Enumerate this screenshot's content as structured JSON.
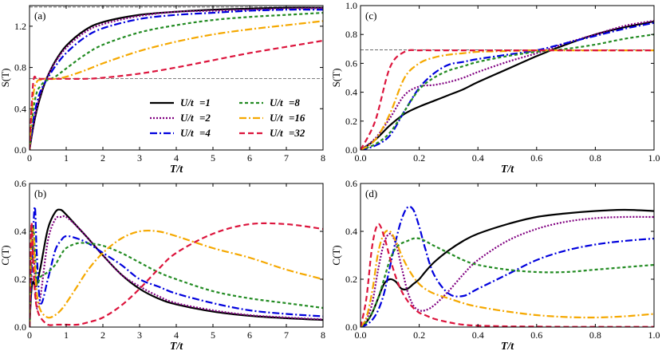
{
  "series_styles": [
    {
      "name": "U/t=1",
      "label_left": "U/t",
      "label_right": "=1",
      "color": "#000000",
      "dash": ""
    },
    {
      "name": "U/t=2",
      "label_left": "U/t",
      "label_right": "=2",
      "color": "#800080",
      "dash": "2 2"
    },
    {
      "name": "U/t=4",
      "label_left": "U/t",
      "label_right": "=4",
      "color": "#0000dd",
      "dash": "9 3 2 3"
    },
    {
      "name": "U/t=8",
      "label_left": "U/t",
      "label_right": "=8",
      "color": "#228b22",
      "dash": "4 3"
    },
    {
      "name": "U/t=16",
      "label_left": "U/t",
      "label_right": "=16",
      "color": "#f5a800",
      "dash": "9 3 2 3"
    },
    {
      "name": "U/t=32",
      "label_left": "U/t",
      "label_right": "=32",
      "color": "#dc143c",
      "dash": "7 4"
    }
  ],
  "chart_data": [
    {
      "panel": "(a)",
      "type": "line",
      "xlabel": "T/t",
      "ylabel": "S(T)",
      "xlim": [
        0,
        8
      ],
      "ylim": [
        0,
        1.4
      ],
      "xticks": [
        0,
        1,
        2,
        3,
        4,
        5,
        6,
        7,
        8
      ],
      "yticks": [
        0,
        0.4,
        0.8,
        1.2
      ],
      "xtick_labels": [
        "0",
        "1",
        "2",
        "3",
        "4",
        "5",
        "6",
        "7",
        "8"
      ],
      "ytick_labels": [
        "0.0",
        "0.4",
        "0.8",
        "1.2"
      ],
      "hlines": [
        1.386,
        0.693
      ],
      "x": [
        0,
        0.1,
        0.2,
        0.3,
        0.4,
        0.5,
        0.7,
        1,
        1.5,
        2,
        3,
        4,
        5,
        6,
        7,
        8
      ],
      "series": [
        {
          "name": "U/t=1",
          "values": [
            0,
            0.22,
            0.39,
            0.52,
            0.63,
            0.72,
            0.86,
            1.01,
            1.16,
            1.24,
            1.31,
            1.34,
            1.36,
            1.37,
            1.38,
            1.38
          ]
        },
        {
          "name": "U/t=2",
          "values": [
            0,
            0.24,
            0.41,
            0.54,
            0.64,
            0.72,
            0.85,
            0.99,
            1.14,
            1.22,
            1.3,
            1.34,
            1.35,
            1.36,
            1.37,
            1.375
          ]
        },
        {
          "name": "U/t=4",
          "values": [
            0,
            0.28,
            0.46,
            0.57,
            0.64,
            0.7,
            0.81,
            0.94,
            1.09,
            1.18,
            1.27,
            1.31,
            1.33,
            1.35,
            1.36,
            1.36
          ]
        },
        {
          "name": "U/t=8",
          "values": [
            0,
            0.38,
            0.56,
            0.62,
            0.66,
            0.68,
            0.71,
            0.79,
            0.92,
            1.02,
            1.14,
            1.21,
            1.26,
            1.29,
            1.31,
            1.33
          ]
        },
        {
          "name": "U/t=16",
          "values": [
            0,
            0.52,
            0.66,
            0.68,
            0.69,
            0.69,
            0.69,
            0.71,
            0.77,
            0.84,
            0.96,
            1.05,
            1.12,
            1.17,
            1.21,
            1.25
          ]
        },
        {
          "name": "U/t=32",
          "values": [
            0,
            0.65,
            0.69,
            0.69,
            0.69,
            0.69,
            0.69,
            0.69,
            0.69,
            0.7,
            0.74,
            0.8,
            0.87,
            0.94,
            1.0,
            1.06
          ]
        }
      ],
      "legend": "center-right"
    },
    {
      "panel": "(b)",
      "type": "line",
      "xlabel": "T/t",
      "ylabel": "C(T)",
      "xlim": [
        0,
        8
      ],
      "ylim": [
        0,
        0.6
      ],
      "xticks": [
        0,
        1,
        2,
        3,
        4,
        5,
        6,
        7,
        8
      ],
      "yticks": [
        0,
        0.2,
        0.4,
        0.6
      ],
      "xtick_labels": [
        "0",
        "1",
        "2",
        "3",
        "4",
        "5",
        "6",
        "7",
        "8"
      ],
      "ytick_labels": [
        "0.0",
        "0.2",
        "0.4",
        "0.6"
      ],
      "x": [
        0,
        0.05,
        0.1,
        0.15,
        0.2,
        0.3,
        0.5,
        0.7,
        0.85,
        1,
        1.3,
        1.6,
        2,
        2.5,
        3,
        3.5,
        4,
        5,
        6,
        7,
        8
      ],
      "series": [
        {
          "name": "U/t=1",
          "values": [
            0,
            0.15,
            0.19,
            0.17,
            0.18,
            0.25,
            0.41,
            0.48,
            0.49,
            0.47,
            0.42,
            0.37,
            0.3,
            0.22,
            0.16,
            0.12,
            0.095,
            0.065,
            0.047,
            0.037,
            0.03
          ]
        },
        {
          "name": "U/t=2",
          "values": [
            0,
            0.22,
            0.34,
            0.2,
            0.08,
            0.13,
            0.36,
            0.45,
            0.46,
            0.46,
            0.42,
            0.37,
            0.3,
            0.22,
            0.17,
            0.13,
            0.1,
            0.07,
            0.05,
            0.04,
            0.032
          ]
        },
        {
          "name": "U/t=4",
          "values": [
            0,
            0.2,
            0.4,
            0.5,
            0.3,
            0.1,
            0.2,
            0.32,
            0.36,
            0.38,
            0.37,
            0.35,
            0.31,
            0.26,
            0.2,
            0.17,
            0.14,
            0.1,
            0.07,
            0.055,
            0.045
          ]
        },
        {
          "name": "U/t=8",
          "values": [
            0,
            0.28,
            0.42,
            0.31,
            0.18,
            0.21,
            0.23,
            0.26,
            0.3,
            0.33,
            0.35,
            0.35,
            0.34,
            0.31,
            0.27,
            0.23,
            0.2,
            0.15,
            0.12,
            0.1,
            0.08
          ]
        },
        {
          "name": "U/t=16",
          "values": [
            0,
            0.36,
            0.4,
            0.26,
            0.14,
            0.07,
            0.04,
            0.05,
            0.07,
            0.1,
            0.17,
            0.24,
            0.31,
            0.37,
            0.4,
            0.4,
            0.38,
            0.33,
            0.29,
            0.24,
            0.2
          ]
        },
        {
          "name": "U/t=32",
          "values": [
            0,
            0.43,
            0.26,
            0.14,
            0.08,
            0.04,
            0.01,
            0.01,
            0.01,
            0.01,
            0.01,
            0.02,
            0.04,
            0.09,
            0.16,
            0.24,
            0.31,
            0.39,
            0.43,
            0.43,
            0.41
          ]
        }
      ]
    },
    {
      "panel": "(c)",
      "type": "line",
      "xlabel": "T/t",
      "ylabel": "S(T)",
      "xlim": [
        0,
        1
      ],
      "ylim": [
        0,
        1
      ],
      "xticks": [
        0,
        0.2,
        0.4,
        0.6,
        0.8,
        1
      ],
      "yticks": [
        0,
        0.2,
        0.4,
        0.6,
        0.8,
        1
      ],
      "xtick_labels": [
        "0.0",
        "0.2",
        "0.4",
        "0.6",
        "0.8",
        "1.0"
      ],
      "ytick_labels": [
        "0.0",
        "0.2",
        "0.4",
        "0.6",
        "0.8",
        "1.0"
      ],
      "hlines": [
        0.693
      ],
      "x": [
        0,
        0.05,
        0.1,
        0.15,
        0.2,
        0.25,
        0.3,
        0.35,
        0.4,
        0.5,
        0.6,
        0.7,
        0.8,
        0.9,
        1
      ],
      "series": [
        {
          "name": "U/t=1",
          "values": [
            0,
            0.07,
            0.17,
            0.25,
            0.3,
            0.34,
            0.38,
            0.42,
            0.47,
            0.56,
            0.65,
            0.73,
            0.8,
            0.85,
            0.89
          ]
        },
        {
          "name": "U/t=2",
          "values": [
            0,
            0.08,
            0.22,
            0.38,
            0.44,
            0.45,
            0.47,
            0.5,
            0.54,
            0.61,
            0.67,
            0.74,
            0.8,
            0.86,
            0.895
          ]
        },
        {
          "name": "U/t=4",
          "values": [
            0,
            0.03,
            0.1,
            0.27,
            0.43,
            0.53,
            0.59,
            0.61,
            0.63,
            0.66,
            0.69,
            0.74,
            0.79,
            0.84,
            0.88
          ]
        },
        {
          "name": "U/t=8",
          "values": [
            0,
            0.04,
            0.12,
            0.27,
            0.42,
            0.5,
            0.55,
            0.58,
            0.61,
            0.65,
            0.68,
            0.7,
            0.73,
            0.77,
            0.8
          ]
        },
        {
          "name": "U/t=16",
          "values": [
            0,
            0.07,
            0.25,
            0.5,
            0.6,
            0.64,
            0.66,
            0.67,
            0.68,
            0.685,
            0.69,
            0.69,
            0.69,
            0.69,
            0.69
          ]
        },
        {
          "name": "U/t=32",
          "values": [
            0,
            0.2,
            0.57,
            0.68,
            0.69,
            0.69,
            0.69,
            0.69,
            0.69,
            0.69,
            0.69,
            0.69,
            0.69,
            0.69,
            0.69
          ]
        }
      ]
    },
    {
      "panel": "(d)",
      "type": "line",
      "xlabel": "T/t",
      "ylabel": "C(T)",
      "xlim": [
        0,
        1
      ],
      "ylim": [
        0,
        0.6
      ],
      "xticks": [
        0,
        0.2,
        0.4,
        0.6,
        0.8,
        1
      ],
      "yticks": [
        0,
        0.2,
        0.4,
        0.6
      ],
      "xtick_labels": [
        "0.0",
        "0.2",
        "0.4",
        "0.6",
        "0.8",
        "1.0"
      ],
      "ytick_labels": [
        "0.0",
        "0.2",
        "0.4",
        "0.6"
      ],
      "x": [
        0,
        0.02,
        0.04,
        0.06,
        0.08,
        0.1,
        0.12,
        0.14,
        0.16,
        0.18,
        0.2,
        0.22,
        0.25,
        0.3,
        0.35,
        0.4,
        0.5,
        0.6,
        0.7,
        0.8,
        0.9,
        1
      ],
      "series": [
        {
          "name": "U/t=1",
          "values": [
            0,
            0.02,
            0.06,
            0.12,
            0.18,
            0.2,
            0.19,
            0.16,
            0.16,
            0.18,
            0.2,
            0.23,
            0.27,
            0.32,
            0.36,
            0.39,
            0.43,
            0.46,
            0.475,
            0.485,
            0.49,
            0.485
          ]
        },
        {
          "name": "U/t=2",
          "values": [
            0,
            0.03,
            0.1,
            0.24,
            0.35,
            0.39,
            0.35,
            0.25,
            0.15,
            0.09,
            0.07,
            0.07,
            0.09,
            0.15,
            0.22,
            0.28,
            0.36,
            0.41,
            0.44,
            0.455,
            0.46,
            0.46
          ]
        },
        {
          "name": "U/t=4",
          "values": [
            0,
            0.01,
            0.03,
            0.07,
            0.14,
            0.25,
            0.36,
            0.45,
            0.5,
            0.49,
            0.42,
            0.33,
            0.22,
            0.14,
            0.13,
            0.16,
            0.22,
            0.28,
            0.32,
            0.345,
            0.36,
            0.37
          ]
        },
        {
          "name": "U/t=8",
          "values": [
            0,
            0.02,
            0.06,
            0.12,
            0.2,
            0.28,
            0.33,
            0.35,
            0.36,
            0.37,
            0.37,
            0.36,
            0.34,
            0.31,
            0.28,
            0.26,
            0.24,
            0.23,
            0.23,
            0.24,
            0.25,
            0.26
          ]
        },
        {
          "name": "U/t=16",
          "values": [
            0,
            0.04,
            0.15,
            0.31,
            0.39,
            0.4,
            0.36,
            0.3,
            0.25,
            0.21,
            0.18,
            0.16,
            0.14,
            0.12,
            0.1,
            0.085,
            0.065,
            0.05,
            0.042,
            0.04,
            0.045,
            0.055
          ]
        },
        {
          "name": "U/t=32",
          "values": [
            0,
            0.12,
            0.34,
            0.43,
            0.38,
            0.29,
            0.21,
            0.15,
            0.11,
            0.08,
            0.06,
            0.05,
            0.035,
            0.02,
            0.01,
            0.006,
            0.003,
            0.002,
            0.001,
            0.001,
            0.001,
            0.001
          ]
        }
      ]
    }
  ]
}
